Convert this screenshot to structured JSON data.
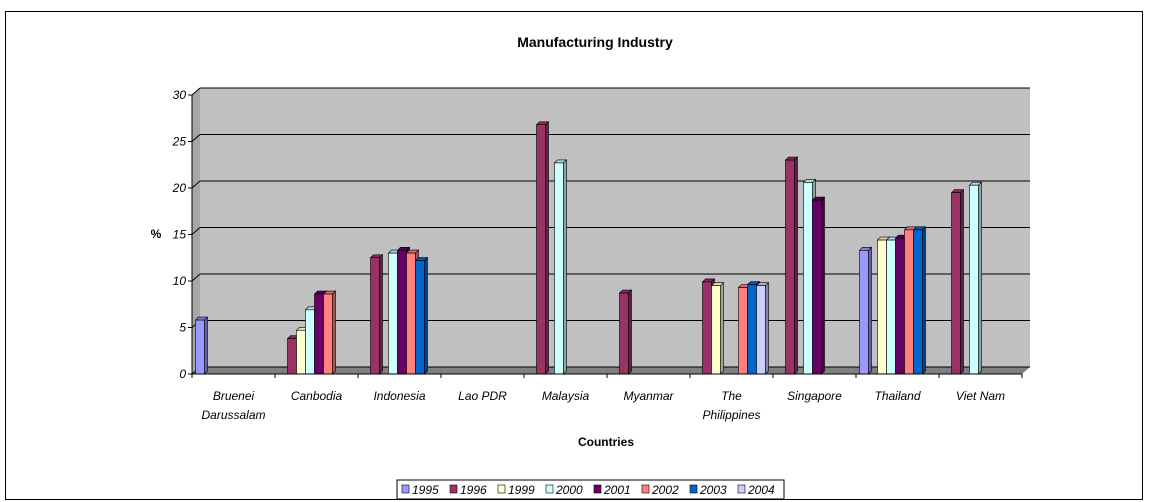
{
  "chart_data": {
    "type": "bar",
    "title": "Manufacturing Industry",
    "xlabel": "Countries",
    "ylabel": "%",
    "ylim": [
      0,
      30
    ],
    "yticks": [
      0,
      5,
      10,
      15,
      20,
      25,
      30
    ],
    "grid": true,
    "legend_position": "bottom",
    "categories": [
      [
        "Bruenei",
        "Darussalam"
      ],
      [
        "Canbodia"
      ],
      [
        "Indonesia"
      ],
      [
        "Lao PDR"
      ],
      [
        "Malaysia"
      ],
      [
        "Myanmar"
      ],
      [
        "The",
        "Philippines"
      ],
      [
        "Singapore"
      ],
      [
        "Thailand"
      ],
      [
        "Viet Nam"
      ]
    ],
    "series": [
      {
        "name": "1995",
        "color": "#9999ff",
        "values": [
          5.8,
          null,
          null,
          null,
          null,
          null,
          null,
          null,
          13.3,
          null
        ]
      },
      {
        "name": "1996",
        "color": "#993366",
        "values": [
          null,
          3.8,
          12.5,
          null,
          26.8,
          8.7,
          9.9,
          23.0,
          null,
          19.5
        ]
      },
      {
        "name": "1999",
        "color": "#ffffcc",
        "values": [
          null,
          4.7,
          null,
          null,
          null,
          null,
          9.5,
          null,
          14.4,
          null
        ]
      },
      {
        "name": "2000",
        "color": "#ccffff",
        "values": [
          null,
          6.9,
          13.0,
          null,
          22.7,
          null,
          null,
          20.6,
          14.4,
          20.3
        ]
      },
      {
        "name": "2001",
        "color": "#660066",
        "values": [
          null,
          8.6,
          13.3,
          null,
          null,
          null,
          null,
          18.7,
          14.6,
          null
        ]
      },
      {
        "name": "2002",
        "color": "#ff8080",
        "values": [
          null,
          8.6,
          13.0,
          null,
          null,
          null,
          9.3,
          null,
          15.5,
          null
        ]
      },
      {
        "name": "2003",
        "color": "#0066cc",
        "values": [
          null,
          null,
          12.2,
          null,
          null,
          null,
          9.6,
          null,
          15.5,
          null
        ]
      },
      {
        "name": "2004",
        "color": "#ccccff",
        "values": [
          null,
          null,
          null,
          null,
          null,
          null,
          9.5,
          null,
          null,
          null
        ]
      }
    ]
  }
}
